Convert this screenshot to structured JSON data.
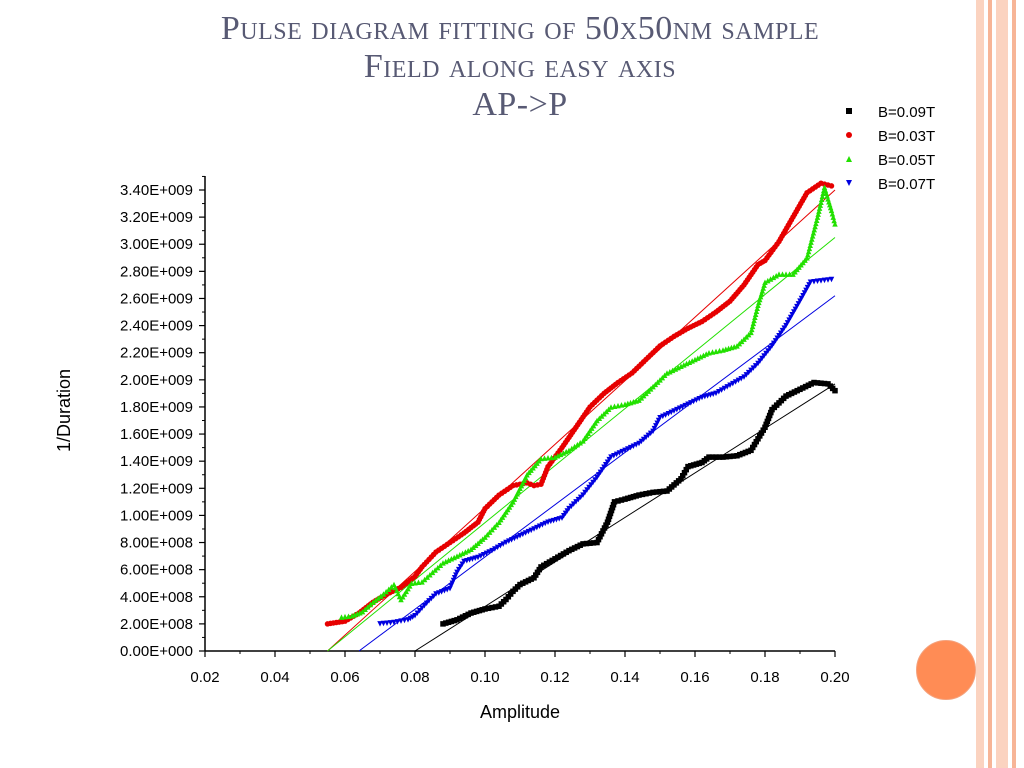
{
  "slide": {
    "title_lines": [
      "Pulse diagram fitting of 50x50nm sample",
      "Field along easy axis",
      "AP->P"
    ],
    "colors": {
      "title": "#585a74",
      "stripe_light": "#fbd3c0",
      "stripe_dark": "#f7b597",
      "accent_circle": "#ff8c55"
    }
  },
  "chart_data": {
    "type": "scatter",
    "xlabel": "Amplitude",
    "ylabel": "1/Duration",
    "xlim": [
      0.02,
      0.2
    ],
    "ylim": [
      0,
      3400000000.0
    ],
    "x_ticks": [
      "0.02",
      "0.04",
      "0.06",
      "0.08",
      "0.10",
      "0.12",
      "0.14",
      "0.16",
      "0.18",
      "0.20"
    ],
    "y_ticks": [
      "0.00E+000",
      "2.00E+008",
      "4.00E+008",
      "6.00E+008",
      "8.00E+008",
      "1.00E+009",
      "1.20E+009",
      "1.40E+009",
      "1.60E+009",
      "1.80E+009",
      "2.00E+009",
      "2.20E+009",
      "2.40E+009",
      "2.60E+009",
      "2.80E+009",
      "3.00E+009",
      "3.20E+009",
      "3.40E+009"
    ],
    "legend_position": "top-right",
    "series": [
      {
        "name": "B=0.09T",
        "color": "#000000",
        "marker": "square",
        "points": [
          [
            0.088,
            200000000.0
          ],
          [
            0.092,
            230000000.0
          ],
          [
            0.096,
            280000000.0
          ],
          [
            0.1,
            310000000.0
          ],
          [
            0.104,
            330000000.0
          ],
          [
            0.106,
            380000000.0
          ],
          [
            0.108,
            440000000.0
          ],
          [
            0.11,
            490000000.0
          ],
          [
            0.114,
            540000000.0
          ],
          [
            0.116,
            620000000.0
          ],
          [
            0.12,
            680000000.0
          ],
          [
            0.124,
            740000000.0
          ],
          [
            0.128,
            790000000.0
          ],
          [
            0.132,
            800000000.0
          ],
          [
            0.135,
            950000000.0
          ],
          [
            0.137,
            1100000000.0
          ],
          [
            0.14,
            1120000000.0
          ],
          [
            0.144,
            1150000000.0
          ],
          [
            0.148,
            1170000000.0
          ],
          [
            0.152,
            1180000000.0
          ],
          [
            0.156,
            1270000000.0
          ],
          [
            0.158,
            1360000000.0
          ],
          [
            0.162,
            1390000000.0
          ],
          [
            0.164,
            1430000000.0
          ],
          [
            0.168,
            1430000000.0
          ],
          [
            0.172,
            1440000000.0
          ],
          [
            0.176,
            1480000000.0
          ],
          [
            0.18,
            1650000000.0
          ],
          [
            0.182,
            1780000000.0
          ],
          [
            0.186,
            1880000000.0
          ],
          [
            0.19,
            1930000000.0
          ],
          [
            0.194,
            1980000000.0
          ],
          [
            0.198,
            1970000000.0
          ],
          [
            0.2,
            1920000000.0
          ]
        ]
      },
      {
        "name": "B=0.03T",
        "color": "#e60000",
        "marker": "circle",
        "points": [
          [
            0.055,
            200000000.0
          ],
          [
            0.06,
            220000000.0
          ],
          [
            0.064,
            280000000.0
          ],
          [
            0.068,
            360000000.0
          ],
          [
            0.072,
            420000000.0
          ],
          [
            0.076,
            470000000.0
          ],
          [
            0.08,
            550000000.0
          ],
          [
            0.082,
            620000000.0
          ],
          [
            0.086,
            730000000.0
          ],
          [
            0.09,
            800000000.0
          ],
          [
            0.094,
            870000000.0
          ],
          [
            0.098,
            950000000.0
          ],
          [
            0.1,
            1050000000.0
          ],
          [
            0.104,
            1150000000.0
          ],
          [
            0.108,
            1220000000.0
          ],
          [
            0.112,
            1240000000.0
          ],
          [
            0.114,
            1220000000.0
          ],
          [
            0.116,
            1230000000.0
          ],
          [
            0.118,
            1360000000.0
          ],
          [
            0.122,
            1500000000.0
          ],
          [
            0.126,
            1650000000.0
          ],
          [
            0.13,
            1800000000.0
          ],
          [
            0.134,
            1900000000.0
          ],
          [
            0.138,
            1980000000.0
          ],
          [
            0.142,
            2050000000.0
          ],
          [
            0.146,
            2150000000.0
          ],
          [
            0.15,
            2250000000.0
          ],
          [
            0.154,
            2320000000.0
          ],
          [
            0.158,
            2380000000.0
          ],
          [
            0.162,
            2430000000.0
          ],
          [
            0.166,
            2500000000.0
          ],
          [
            0.17,
            2580000000.0
          ],
          [
            0.174,
            2700000000.0
          ],
          [
            0.178,
            2850000000.0
          ],
          [
            0.18,
            2880000000.0
          ],
          [
            0.184,
            3020000000.0
          ],
          [
            0.188,
            3200000000.0
          ],
          [
            0.192,
            3380000000.0
          ],
          [
            0.196,
            3450000000.0
          ],
          [
            0.199,
            3430000000.0
          ]
        ]
      },
      {
        "name": "B=0.05T",
        "color": "#22e000",
        "marker": "triangle-up",
        "points": [
          [
            0.059,
            250000000.0
          ],
          [
            0.062,
            260000000.0
          ],
          [
            0.065,
            290000000.0
          ],
          [
            0.068,
            360000000.0
          ],
          [
            0.071,
            420000000.0
          ],
          [
            0.074,
            490000000.0
          ],
          [
            0.076,
            380000000.0
          ],
          [
            0.079,
            500000000.0
          ],
          [
            0.082,
            510000000.0
          ],
          [
            0.085,
            580000000.0
          ],
          [
            0.088,
            650000000.0
          ],
          [
            0.092,
            700000000.0
          ],
          [
            0.096,
            750000000.0
          ],
          [
            0.1,
            840000000.0
          ],
          [
            0.104,
            950000000.0
          ],
          [
            0.108,
            1100000000.0
          ],
          [
            0.112,
            1300000000.0
          ],
          [
            0.116,
            1420000000.0
          ],
          [
            0.12,
            1430000000.0
          ],
          [
            0.124,
            1480000000.0
          ],
          [
            0.128,
            1550000000.0
          ],
          [
            0.132,
            1700000000.0
          ],
          [
            0.136,
            1800000000.0
          ],
          [
            0.14,
            1820000000.0
          ],
          [
            0.144,
            1850000000.0
          ],
          [
            0.148,
            1950000000.0
          ],
          [
            0.152,
            2050000000.0
          ],
          [
            0.156,
            2100000000.0
          ],
          [
            0.16,
            2150000000.0
          ],
          [
            0.164,
            2200000000.0
          ],
          [
            0.168,
            2220000000.0
          ],
          [
            0.172,
            2250000000.0
          ],
          [
            0.176,
            2350000000.0
          ],
          [
            0.178,
            2550000000.0
          ],
          [
            0.18,
            2720000000.0
          ],
          [
            0.184,
            2780000000.0
          ],
          [
            0.188,
            2780000000.0
          ],
          [
            0.192,
            2900000000.0
          ],
          [
            0.195,
            3200000000.0
          ],
          [
            0.197,
            3420000000.0
          ],
          [
            0.199,
            3250000000.0
          ],
          [
            0.2,
            3150000000.0
          ]
        ]
      },
      {
        "name": "B=0.07T",
        "color": "#0000e0",
        "marker": "triangle-down",
        "points": [
          [
            0.07,
            200000000.0
          ],
          [
            0.074,
            210000000.0
          ],
          [
            0.078,
            230000000.0
          ],
          [
            0.08,
            260000000.0
          ],
          [
            0.084,
            370000000.0
          ],
          [
            0.086,
            420000000.0
          ],
          [
            0.09,
            460000000.0
          ],
          [
            0.092,
            580000000.0
          ],
          [
            0.094,
            660000000.0
          ],
          [
            0.098,
            690000000.0
          ],
          [
            0.102,
            740000000.0
          ],
          [
            0.106,
            800000000.0
          ],
          [
            0.11,
            850000000.0
          ],
          [
            0.114,
            900000000.0
          ],
          [
            0.118,
            950000000.0
          ],
          [
            0.122,
            980000000.0
          ],
          [
            0.124,
            1050000000.0
          ],
          [
            0.128,
            1150000000.0
          ],
          [
            0.132,
            1280000000.0
          ],
          [
            0.136,
            1430000000.0
          ],
          [
            0.14,
            1480000000.0
          ],
          [
            0.144,
            1530000000.0
          ],
          [
            0.148,
            1620000000.0
          ],
          [
            0.15,
            1720000000.0
          ],
          [
            0.154,
            1770000000.0
          ],
          [
            0.158,
            1820000000.0
          ],
          [
            0.162,
            1870000000.0
          ],
          [
            0.166,
            1900000000.0
          ],
          [
            0.17,
            1960000000.0
          ],
          [
            0.174,
            2020000000.0
          ],
          [
            0.178,
            2120000000.0
          ],
          [
            0.182,
            2250000000.0
          ],
          [
            0.186,
            2400000000.0
          ],
          [
            0.19,
            2580000000.0
          ],
          [
            0.193,
            2720000000.0
          ],
          [
            0.196,
            2730000000.0
          ],
          [
            0.199,
            2740000000.0
          ]
        ]
      }
    ],
    "fit_lines": [
      {
        "series": "B=0.09T",
        "color": "#000000",
        "from": [
          0.08,
          0.0
        ],
        "to": [
          0.2,
          1970000000.0
        ]
      },
      {
        "series": "B=0.03T",
        "color": "#e60000",
        "from": [
          0.055,
          0.0
        ],
        "to": [
          0.2,
          3400000000.0
        ]
      },
      {
        "series": "B=0.05T",
        "color": "#22e000",
        "from": [
          0.055,
          0.0
        ],
        "to": [
          0.2,
          3050000000.0
        ]
      },
      {
        "series": "B=0.07T",
        "color": "#0000e0",
        "from": [
          0.064,
          0.0
        ],
        "to": [
          0.2,
          2620000000.0
        ]
      }
    ]
  }
}
